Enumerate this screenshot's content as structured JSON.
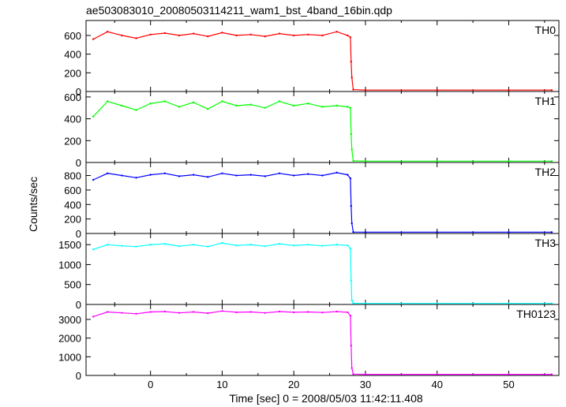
{
  "chart_data": {
    "type": "line",
    "title": "ae503083010_20080503114211_wam1_bst_4band_16bin.qdp",
    "xlabel": "Time [sec] 0 = 2008/05/03 11:42:11.408",
    "ylabel": "Counts/sec",
    "xlim": [
      -9,
      57
    ],
    "xticks": [
      0,
      10,
      20,
      30,
      40,
      50
    ],
    "grid": false,
    "panels": [
      {
        "name": "TH0",
        "color": "#ff0000",
        "ylim": [
          0,
          760
        ],
        "yticks": [
          0,
          200,
          400,
          600
        ],
        "series": {
          "x": [
            -8,
            -6,
            -4,
            -2,
            0,
            2,
            4,
            6,
            8,
            10,
            12,
            14,
            16,
            18,
            20,
            22,
            24,
            26,
            27.5,
            27.9,
            28.0,
            28.1,
            28.3,
            30,
            40,
            50,
            56
          ],
          "values": [
            560,
            640,
            600,
            570,
            610,
            625,
            600,
            620,
            590,
            630,
            600,
            610,
            590,
            620,
            600,
            610,
            600,
            640,
            600,
            580,
            320,
            150,
            20,
            15,
            15,
            15,
            15
          ]
        }
      },
      {
        "name": "TH1",
        "color": "#00ff00",
        "ylim": [
          0,
          650
        ],
        "yticks": [
          0,
          200,
          400,
          600
        ],
        "series": {
          "x": [
            -8,
            -6,
            -4,
            -2,
            0,
            2,
            4,
            6,
            8,
            10,
            12,
            14,
            16,
            18,
            20,
            22,
            24,
            26,
            27.5,
            27.9,
            28.0,
            28.1,
            28.3,
            30,
            40,
            50,
            56
          ],
          "values": [
            420,
            560,
            520,
            480,
            540,
            560,
            510,
            550,
            490,
            560,
            520,
            530,
            500,
            560,
            520,
            540,
            510,
            520,
            510,
            500,
            260,
            120,
            15,
            12,
            12,
            12,
            12
          ]
        }
      },
      {
        "name": "TH2",
        "color": "#0000ff",
        "ylim": [
          0,
          980
        ],
        "yticks": [
          0,
          200,
          400,
          600,
          800
        ],
        "series": {
          "x": [
            -8,
            -6,
            -4,
            -2,
            0,
            2,
            4,
            6,
            8,
            10,
            12,
            14,
            16,
            18,
            20,
            22,
            24,
            26,
            27.5,
            27.9,
            28.0,
            28.1,
            28.3,
            30,
            40,
            50,
            56
          ],
          "values": [
            740,
            830,
            800,
            770,
            810,
            830,
            790,
            810,
            780,
            830,
            800,
            810,
            790,
            830,
            800,
            820,
            800,
            840,
            810,
            760,
            380,
            140,
            20,
            18,
            18,
            18,
            18
          ]
        }
      },
      {
        "name": "TH3",
        "color": "#00ffff",
        "ylim": [
          0,
          1780
        ],
        "yticks": [
          0,
          500,
          1000,
          1500
        ],
        "series": {
          "x": [
            -8,
            -6,
            -4,
            -2,
            0,
            2,
            4,
            6,
            8,
            10,
            12,
            14,
            16,
            18,
            20,
            22,
            24,
            26,
            27.5,
            27.9,
            28.0,
            28.1,
            28.3,
            30,
            40,
            50,
            56
          ],
          "values": [
            1380,
            1500,
            1470,
            1450,
            1500,
            1520,
            1460,
            1500,
            1450,
            1540,
            1480,
            1500,
            1460,
            1520,
            1480,
            1500,
            1470,
            1500,
            1480,
            1400,
            600,
            100,
            30,
            25,
            25,
            25,
            25
          ]
        }
      },
      {
        "name": "TH0123",
        "color": "#ff00ff",
        "ylim": [
          0,
          3800
        ],
        "yticks": [
          0,
          1000,
          2000,
          3000
        ],
        "series": {
          "x": [
            -8,
            -6,
            -4,
            -2,
            0,
            2,
            4,
            6,
            8,
            10,
            12,
            14,
            16,
            18,
            20,
            22,
            24,
            26,
            27.5,
            27.9,
            28.0,
            28.1,
            28.3,
            30,
            40,
            50,
            56
          ],
          "values": [
            3150,
            3400,
            3350,
            3300,
            3400,
            3420,
            3350,
            3400,
            3330,
            3450,
            3380,
            3400,
            3350,
            3420,
            3380,
            3400,
            3370,
            3420,
            3380,
            3200,
            1600,
            400,
            70,
            60,
            60,
            60,
            60
          ]
        }
      }
    ]
  }
}
